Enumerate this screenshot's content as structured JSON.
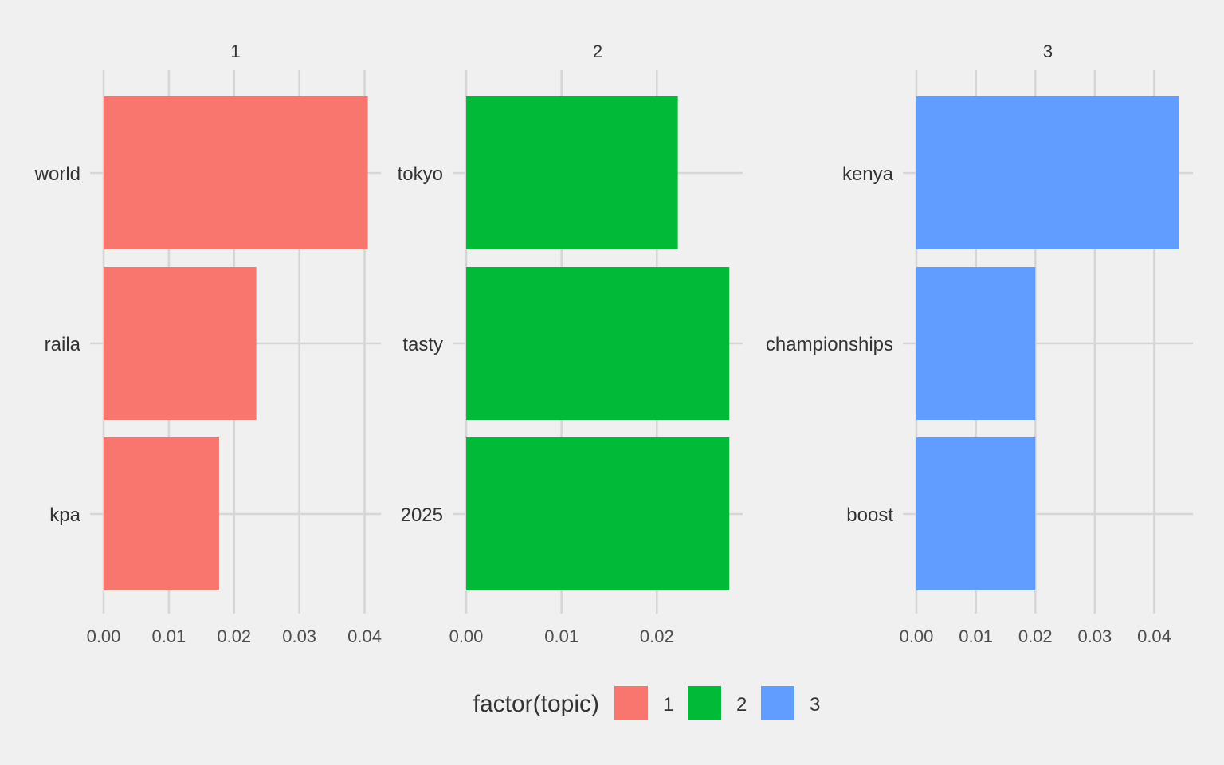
{
  "chart_data": {
    "type": "bar",
    "orientation": "horizontal",
    "facets": [
      {
        "strip_label": "1",
        "series_key": "1",
        "categories": [
          "world",
          "raila",
          "kpa"
        ],
        "values": [
          0.0405,
          0.0234,
          0.0177
        ],
        "xlim": [
          0,
          0.0425
        ],
        "x_ticks": [
          "0.00",
          "0.01",
          "0.02",
          "0.03",
          "0.04"
        ],
        "x_tick_values": [
          0,
          0.01,
          0.02,
          0.03,
          0.04
        ]
      },
      {
        "strip_label": "2",
        "series_key": "2",
        "categories": [
          "tokyo",
          "tasty",
          "2025"
        ],
        "values": [
          0.0222,
          0.0276,
          0.0276
        ],
        "xlim": [
          0,
          0.029
        ],
        "x_ticks": [
          "0.00",
          "0.01",
          "0.02"
        ],
        "x_tick_values": [
          0,
          0.01,
          0.02
        ]
      },
      {
        "strip_label": "3",
        "series_key": "3",
        "categories": [
          "kenya",
          "championships",
          "boost"
        ],
        "values": [
          0.0442,
          0.02,
          0.02
        ],
        "xlim": [
          0,
          0.0465
        ],
        "x_ticks": [
          "0.00",
          "0.01",
          "0.02",
          "0.03",
          "0.04"
        ],
        "x_tick_values": [
          0,
          0.01,
          0.02,
          0.03,
          0.04
        ]
      }
    ],
    "legend": {
      "title": "factor(topic)",
      "position": "bottom",
      "entries": [
        {
          "label": "1",
          "color": "#F8766D"
        },
        {
          "label": "2",
          "color": "#00BA38"
        },
        {
          "label": "3",
          "color": "#619CFF"
        }
      ]
    },
    "grid": true,
    "background": "#f0f0f0"
  }
}
